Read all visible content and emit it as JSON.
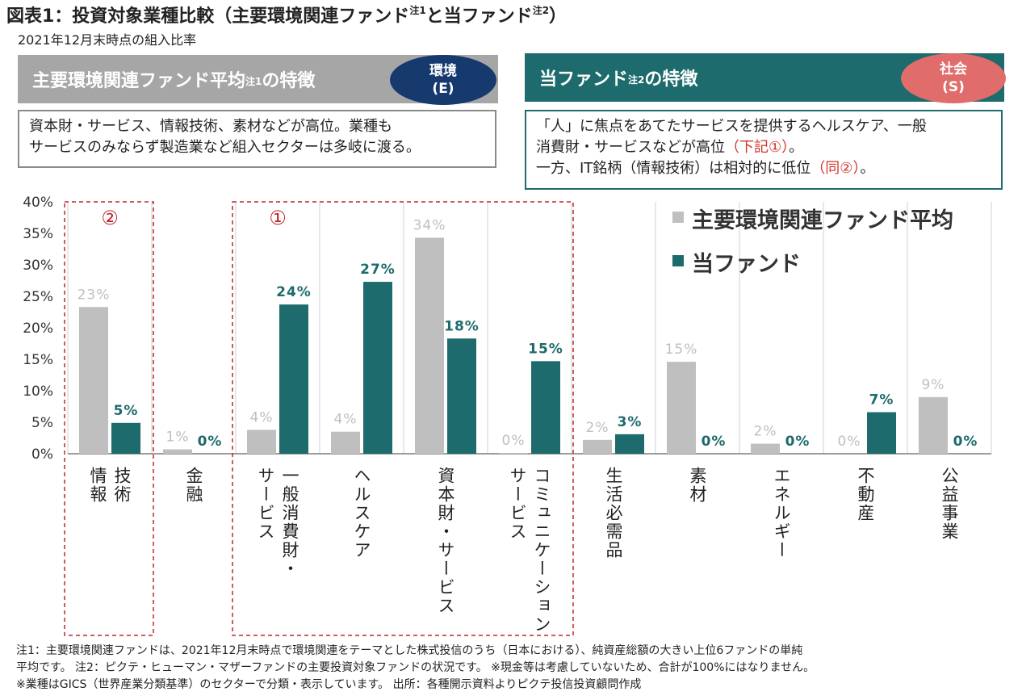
{
  "header": {
    "title_main": "図表1：投資対象業種比較（主要環境関連ファンド",
    "title_note1": "注1",
    "title_mid": "と当ファンド",
    "title_note2": "注2",
    "title_end": "）",
    "subtitle": "2021年12月末時点の組入比率"
  },
  "left_box": {
    "heading": "主要環境関連ファンド平均",
    "heading_note": "注1",
    "heading_end": "の特徴",
    "badge_line1": "環境",
    "badge_line2": "(E)",
    "description_line1": "資本財・サービス、情報技術、素材などが高位。業種も",
    "description_line2": "サービスのみならず製造業など組入セクターは多岐に渡る。"
  },
  "right_box": {
    "heading": "当ファンド",
    "heading_note": "注2",
    "heading_end": "の特徴",
    "badge_line1": "社会",
    "badge_line2": "(S)",
    "description_line1": "「人」に焦点をあてたサービスを提供するヘルスケア、一般",
    "description_line2a": "消費財・サービスなどが高位",
    "description_line2b": "（下記①）",
    "description_line2c": "。",
    "description_line3a": "一方、IT銘柄（情報技術）は相対的に低位",
    "description_line3b": "（同②）",
    "description_line3c": "。"
  },
  "chart_data": {
    "type": "bar",
    "categories": [
      "情報技術",
      "金融",
      "一般消費財・サービス",
      "ヘルスケア",
      "資本財・サービス",
      "コミュニケーション・サービス",
      "生活必需品",
      "素材",
      "エネルギー",
      "不動産",
      "公益事業"
    ],
    "category_label_columns": [
      [
        "情報",
        "技術"
      ],
      [
        "金融"
      ],
      [
        "サービス",
        "一般消費財・"
      ],
      [
        "ヘルスケア"
      ],
      [
        "資本財・サービス"
      ],
      [
        "サービス",
        "コミュニケーション・"
      ],
      [
        "生活必需品"
      ],
      [
        "素材"
      ],
      [
        "エネルギー"
      ],
      [
        "不動産"
      ],
      [
        "公益事業"
      ]
    ],
    "series": [
      {
        "name": "主要環境関連ファンド平均",
        "values": [
          23.3,
          0.7,
          3.8,
          3.5,
          34.3,
          0.1,
          2.2,
          14.6,
          1.6,
          0.0,
          9.0
        ],
        "labels": [
          "23%",
          "1%",
          "4%",
          "4%",
          "34%",
          "0%",
          "2%",
          "15%",
          "2%",
          "0%",
          "9%"
        ],
        "color": "#bfbfbf"
      },
      {
        "name": "当ファンド",
        "values": [
          4.9,
          0.0,
          23.7,
          27.3,
          18.3,
          14.7,
          3.1,
          0.0,
          0.0,
          6.6,
          0.0
        ],
        "labels": [
          "5%",
          "0%",
          "24%",
          "27%",
          "18%",
          "15%",
          "3%",
          "0%",
          "0%",
          "7%",
          "0%"
        ],
        "color": "#1d6b6c"
      }
    ],
    "y_ticks": [
      "0%",
      "5%",
      "10%",
      "15%",
      "20%",
      "25%",
      "30%",
      "35%",
      "40%"
    ],
    "ylim": [
      0,
      40
    ],
    "grid": "vertical separators between categories",
    "legend_position": "top-right",
    "annotations": [
      {
        "label": "②",
        "categories": [
          "情報技術"
        ],
        "color": "#c0272d"
      },
      {
        "label": "①",
        "categories": [
          "一般消費財・サービス",
          "ヘルスケア",
          "資本財・サービス",
          "コミュニケーション・サービス"
        ],
        "color": "#c0272d"
      }
    ]
  },
  "notes": {
    "line1": "注1：主要環境関連ファンドは、2021年12月末時点で環境関連をテーマとした株式投信のうち（日本における）、純資産総額の大きい上位6ファンドの単純",
    "line2": "平均です。  注2：ピクテ・ヒューマン・マザーファンドの主要投資対象ファンドの状況です。  ※現金等は考慮していないため、合計が100%にはなりません。",
    "line3": "※業種はGICS（世界産業分類基準）のセクターで分類・表示しています。  出所：各種開示資料よりピクテ投信投資顧問作成"
  }
}
